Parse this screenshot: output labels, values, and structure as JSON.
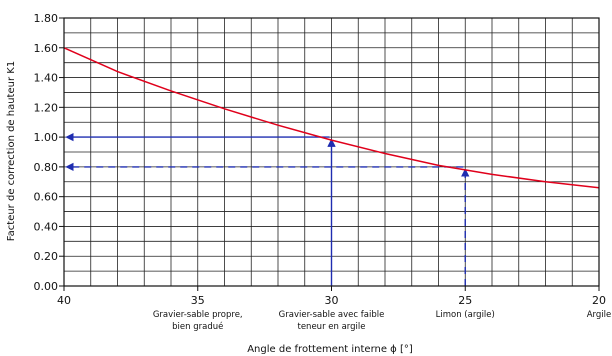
{
  "chart_data": {
    "type": "line",
    "title": "",
    "xlabel": "Angle de frottement interne ϕ [°]",
    "ylabel": "Facteur de correction de hauteur K1",
    "xlim": [
      40,
      20
    ],
    "ylim": [
      0,
      1.8
    ],
    "x_reversed": true,
    "grid": true,
    "x_ticks": [
      40,
      35,
      30,
      25,
      20
    ],
    "x_tick_labels": [
      "40",
      "35",
      "30",
      "25",
      "20"
    ],
    "y_ticks": [
      0,
      0.2,
      0.4,
      0.6,
      0.8,
      1.0,
      1.2,
      1.4,
      1.6,
      1.8
    ],
    "y_tick_labels": [
      "0.00",
      "0.20",
      "0.40",
      "0.60",
      "0.80",
      "1.00",
      "1.20",
      "1.40",
      "1.60",
      "1.80"
    ],
    "series": [
      {
        "color": "#e0001b",
        "x": [
          40,
          38,
          36,
          34,
          32,
          30,
          28,
          26,
          24,
          22,
          20
        ],
        "y": [
          1.6,
          1.44,
          1.31,
          1.19,
          1.08,
          0.98,
          0.89,
          0.81,
          0.75,
          0.7,
          0.66
        ]
      }
    ],
    "guides": [
      {
        "style": "solid",
        "color": "#1f2db0",
        "x": 30,
        "y": 1.0
      },
      {
        "style": "dashed",
        "color": "#1f2db0",
        "x": 25,
        "y": 0.8
      }
    ],
    "category_labels": [
      {
        "x": 35,
        "lines": [
          "Gravier-sable propre,",
          "bien gradué"
        ]
      },
      {
        "x": 30,
        "lines": [
          "Gravier-sable avec faible",
          "teneur en argile"
        ]
      },
      {
        "x": 25,
        "lines": [
          "Limon (argile)"
        ]
      },
      {
        "x": 20,
        "lines": [
          "Argile"
        ]
      }
    ]
  }
}
